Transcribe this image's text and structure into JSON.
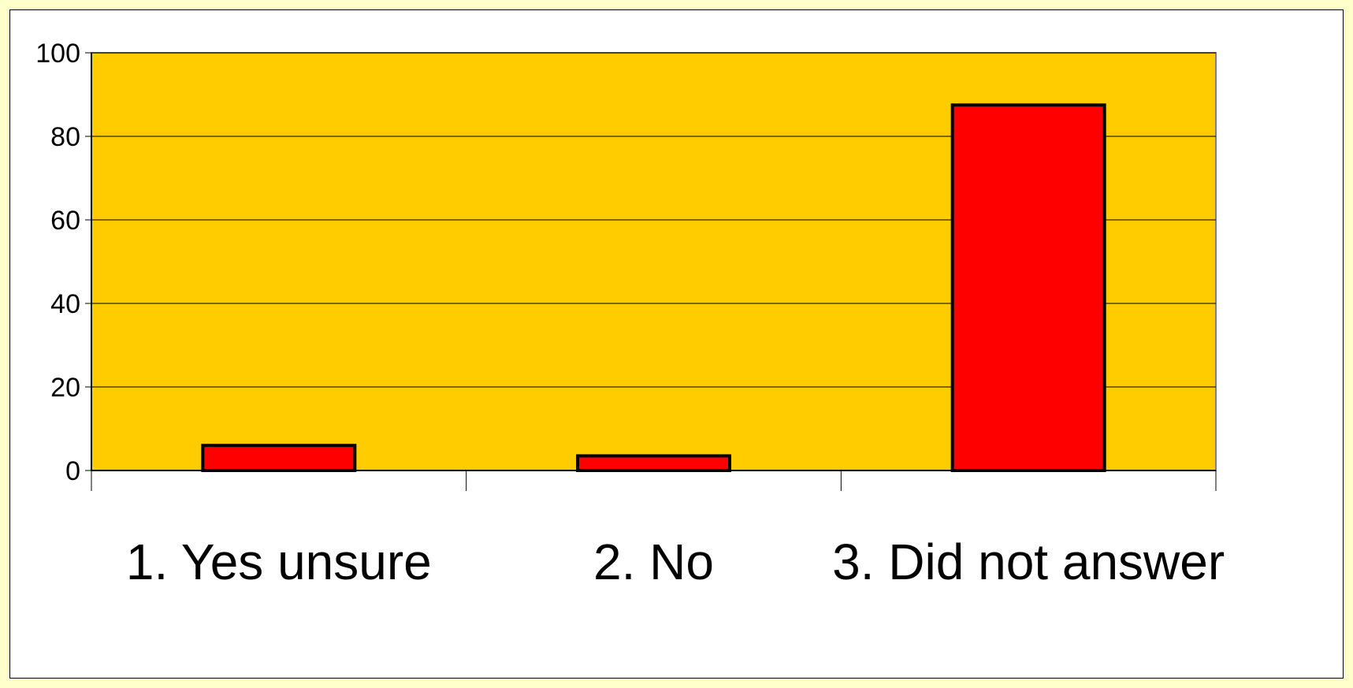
{
  "chart_data": {
    "type": "bar",
    "categories": [
      "1. Yes unsure",
      "2. No",
      "3. Did not answer"
    ],
    "values": [
      6,
      3.5,
      87.5
    ],
    "ylim": [
      0,
      100
    ],
    "yticks": [
      "0",
      "20",
      "40",
      "60",
      "80",
      "100"
    ],
    "grid": true,
    "colors": {
      "plot_background": "#ffcc00",
      "bar_fill": "#ff0000",
      "bar_stroke": "#000000",
      "gridline": "#000000",
      "frame_background": "#ffffcc"
    }
  }
}
